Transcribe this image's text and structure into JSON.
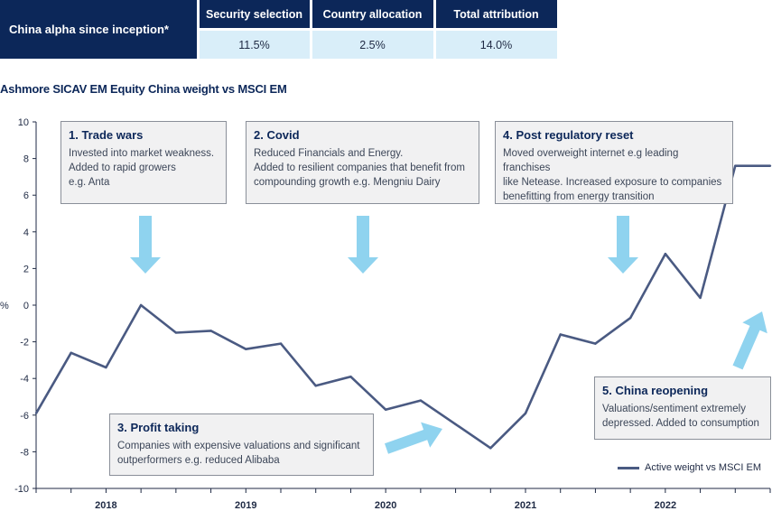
{
  "attribution": {
    "row_label": "China alpha since inception*",
    "headers": [
      "Security selection",
      "Country allocation",
      "Total attribution"
    ],
    "values": [
      "11.5%",
      "2.5%",
      "14.0%"
    ]
  },
  "annotations": [
    {
      "title": "1. Trade wars",
      "lines": [
        "Invested into market weakness.",
        "Added to rapid growers",
        "e.g. Anta"
      ]
    },
    {
      "title": "2. Covid",
      "lines": [
        "Reduced Financials and Energy.",
        "Added to resilient companies that benefit from",
        "compounding growth e.g. Mengniu Dairy"
      ]
    },
    {
      "title": "3. Profit taking",
      "lines": [
        "Companies with expensive valuations and significant",
        "outperformers e.g. reduced Alibaba"
      ]
    },
    {
      "title": "4. Post regulatory reset",
      "lines": [
        "Moved overweight internet e.g leading franchises",
        "like Netease. Increased exposure to companies",
        "benefitting from energy transition"
      ]
    },
    {
      "title": "5. China reopening",
      "lines": [
        "Valuations/sentiment extremely",
        "depressed. Added to consumption"
      ]
    }
  ],
  "colors": {
    "navy": "#0c2759",
    "line": "#4a5a82",
    "arrow": "#8fd3ef",
    "table_value_bg": "#d9eef9"
  },
  "chart_data": {
    "type": "line",
    "title": "Ashmore SICAV EM Equity China weight vs MSCI EM",
    "ylabel": "%",
    "ylim": [
      -10,
      10
    ],
    "yticks": [
      10,
      8,
      6,
      4,
      2,
      0,
      -2,
      -4,
      -6,
      -8,
      -10
    ],
    "xlim": [
      2017.5,
      2022.75
    ],
    "year_labels": [
      "2018",
      "2019",
      "2020",
      "2021",
      "2022"
    ],
    "grid": false,
    "legend_position": "bottom-right",
    "series": [
      {
        "name": "Active weight vs MSCI EM",
        "x": [
          2017.5,
          2017.75,
          2018.0,
          2018.25,
          2018.5,
          2018.75,
          2019.0,
          2019.25,
          2019.5,
          2019.75,
          2020.0,
          2020.25,
          2020.5,
          2020.75,
          2021.0,
          2021.25,
          2021.5,
          2021.75,
          2022.0,
          2022.25,
          2022.5,
          2022.75
        ],
        "y": [
          -5.9,
          -2.6,
          -3.4,
          0.0,
          -1.5,
          -1.4,
          -2.4,
          -2.1,
          -4.4,
          -3.9,
          -5.7,
          -5.2,
          -6.5,
          -7.8,
          -5.9,
          -1.6,
          -2.1,
          -0.7,
          2.8,
          0.4,
          7.6,
          7.6
        ]
      }
    ]
  }
}
